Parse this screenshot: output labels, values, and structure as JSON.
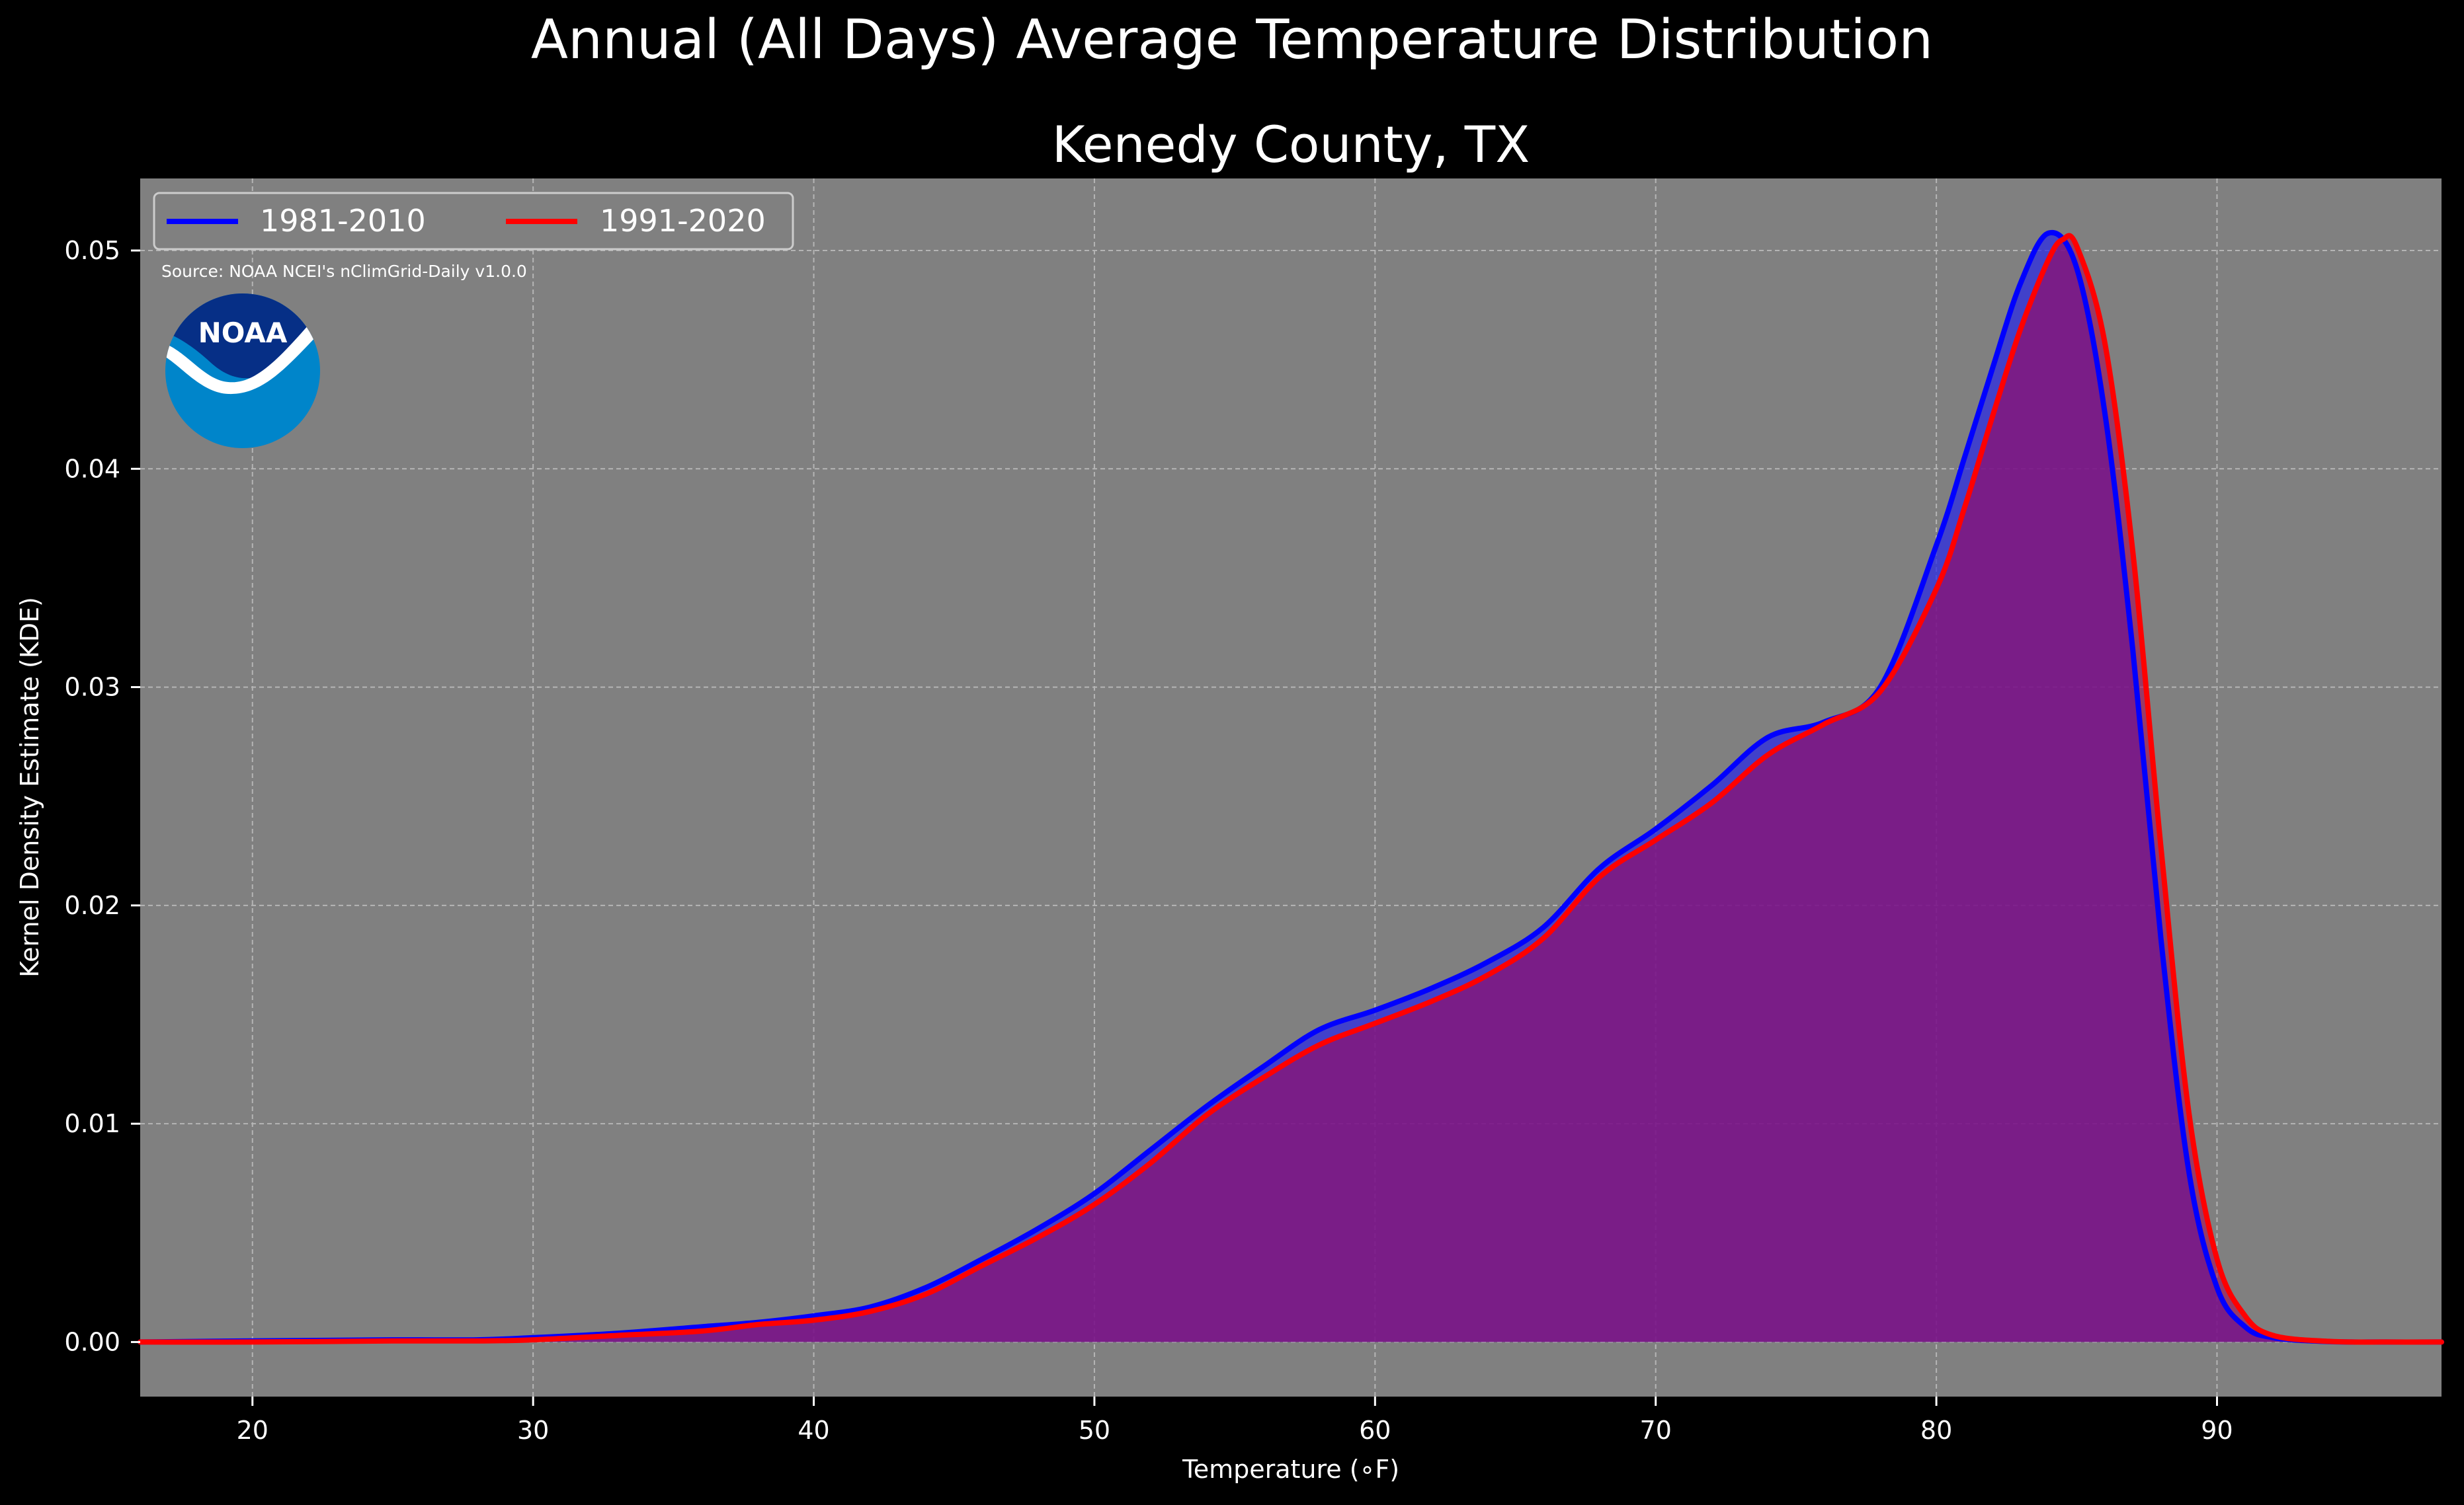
{
  "chart_data": {
    "type": "area",
    "suptitle": "Annual (All Days) Average Temperature Distribution",
    "title": "Kenedy County, TX",
    "xlabel": "Temperature (∘F)",
    "ylabel": "Kernel Density Estimate (KDE)",
    "xlim": [
      16,
      98
    ],
    "ylim": [
      -0.0025,
      0.0533
    ],
    "xticks": [
      20,
      30,
      40,
      50,
      60,
      70,
      80,
      90
    ],
    "yticks": [
      0.0,
      0.01,
      0.02,
      0.03,
      0.04,
      0.05
    ],
    "xtick_labels": [
      "20",
      "30",
      "40",
      "50",
      "60",
      "70",
      "80",
      "90"
    ],
    "ytick_labels": [
      "0.00",
      "0.01",
      "0.02",
      "0.03",
      "0.04",
      "0.05"
    ],
    "grid": true,
    "legend_position": "top-left",
    "source_note": "Source: NOAA NCEI's nClimGrid-Daily v1.0.0",
    "logo_text": "NOAA",
    "plot_background": "#808080",
    "figure_background": "#000000",
    "series": [
      {
        "name": "1981-2010",
        "color": "#0000ff",
        "fill": "rgba(40,40,230,0.72)",
        "x": [
          16,
          20,
          25,
          28,
          30,
          33,
          36,
          38,
          40,
          42,
          44,
          46,
          48,
          50,
          52,
          54,
          56,
          58,
          60,
          62,
          64,
          66,
          68,
          70,
          72,
          74,
          76,
          78,
          80,
          81,
          82,
          83,
          84,
          85,
          86,
          87,
          88,
          89,
          90,
          91,
          92,
          94,
          96,
          98
        ],
        "y": [
          0.0,
          5e-05,
          0.0001,
          0.0001,
          0.0002,
          0.0004,
          0.0007,
          0.0009,
          0.0012,
          0.0016,
          0.0025,
          0.0038,
          0.0052,
          0.0068,
          0.0088,
          0.0108,
          0.0126,
          0.0143,
          0.0152,
          0.0162,
          0.0174,
          0.019,
          0.0217,
          0.0235,
          0.0255,
          0.0277,
          0.0284,
          0.03,
          0.0365,
          0.0405,
          0.0446,
          0.0485,
          0.0508,
          0.0492,
          0.0426,
          0.0317,
          0.0185,
          0.0078,
          0.0025,
          0.0007,
          0.0002,
          2e-05,
          0.0,
          0.0
        ]
      },
      {
        "name": "1991-2020",
        "color": "#ff0000",
        "fill": "rgba(170,0,80,0.55)",
        "x": [
          16,
          20,
          25,
          28,
          30,
          33,
          36,
          38,
          40,
          42,
          44,
          46,
          48,
          50,
          52,
          54,
          56,
          58,
          60,
          62,
          64,
          66,
          68,
          70,
          72,
          74,
          76,
          78,
          80,
          81,
          82,
          83,
          84,
          84.5,
          85,
          86,
          87,
          88,
          89,
          90,
          91,
          92,
          94,
          96,
          98
        ],
        "y": [
          0.0,
          0.0,
          5e-05,
          5e-05,
          0.0001,
          0.0003,
          0.0005,
          0.0008,
          0.001,
          0.0014,
          0.0022,
          0.0035,
          0.0048,
          0.0063,
          0.0082,
          0.0104,
          0.0121,
          0.0136,
          0.0146,
          0.0156,
          0.0168,
          0.0185,
          0.0213,
          0.023,
          0.0247,
          0.0269,
          0.0283,
          0.0298,
          0.0345,
          0.0382,
          0.0424,
          0.0464,
          0.0496,
          0.0505,
          0.0502,
          0.0458,
          0.0362,
          0.0227,
          0.0105,
          0.0038,
          0.0012,
          0.0003,
          3e-05,
          0.0,
          0.0
        ]
      }
    ]
  }
}
